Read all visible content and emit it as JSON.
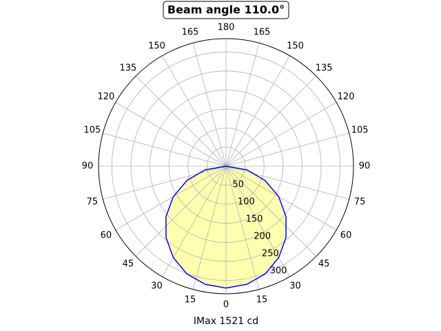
{
  "chart_data": {
    "type": "polar",
    "title": "Beam angle 110.0°",
    "xlabel": "IMax 1521 cd",
    "rlim": [
      0,
      335
    ],
    "rticks": [
      50,
      100,
      150,
      200,
      250,
      300
    ],
    "thetaticks": [
      0,
      15,
      30,
      45,
      60,
      75,
      90,
      105,
      120,
      135,
      150,
      165,
      180,
      {
        "value": 195,
        "label": "165"
      },
      {
        "value": 210,
        "label": "150"
      },
      {
        "value": 225,
        "label": "135"
      },
      {
        "value": 240,
        "label": "120"
      },
      {
        "value": 255,
        "label": "105"
      },
      {
        "value": 270,
        "label": "90"
      },
      {
        "value": 285,
        "label": "75"
      },
      {
        "value": 300,
        "label": "60"
      },
      {
        "value": 315,
        "label": "45"
      },
      {
        "value": 330,
        "label": "30"
      },
      {
        "value": 345,
        "label": "15"
      }
    ],
    "grid": true,
    "series": [
      {
        "color": "#0000ff",
        "fill": "#ffffb0",
        "theta": [
          270,
          280,
          290,
          300,
          310,
          320,
          330,
          340,
          350,
          0,
          10,
          20,
          30,
          40,
          50,
          60,
          70,
          80,
          90
        ],
        "values": [
          0,
          56,
          109,
          160,
          206,
          245,
          277,
          301,
          315,
          320,
          315,
          301,
          277,
          245,
          206,
          160,
          109,
          56,
          0
        ]
      }
    ]
  }
}
